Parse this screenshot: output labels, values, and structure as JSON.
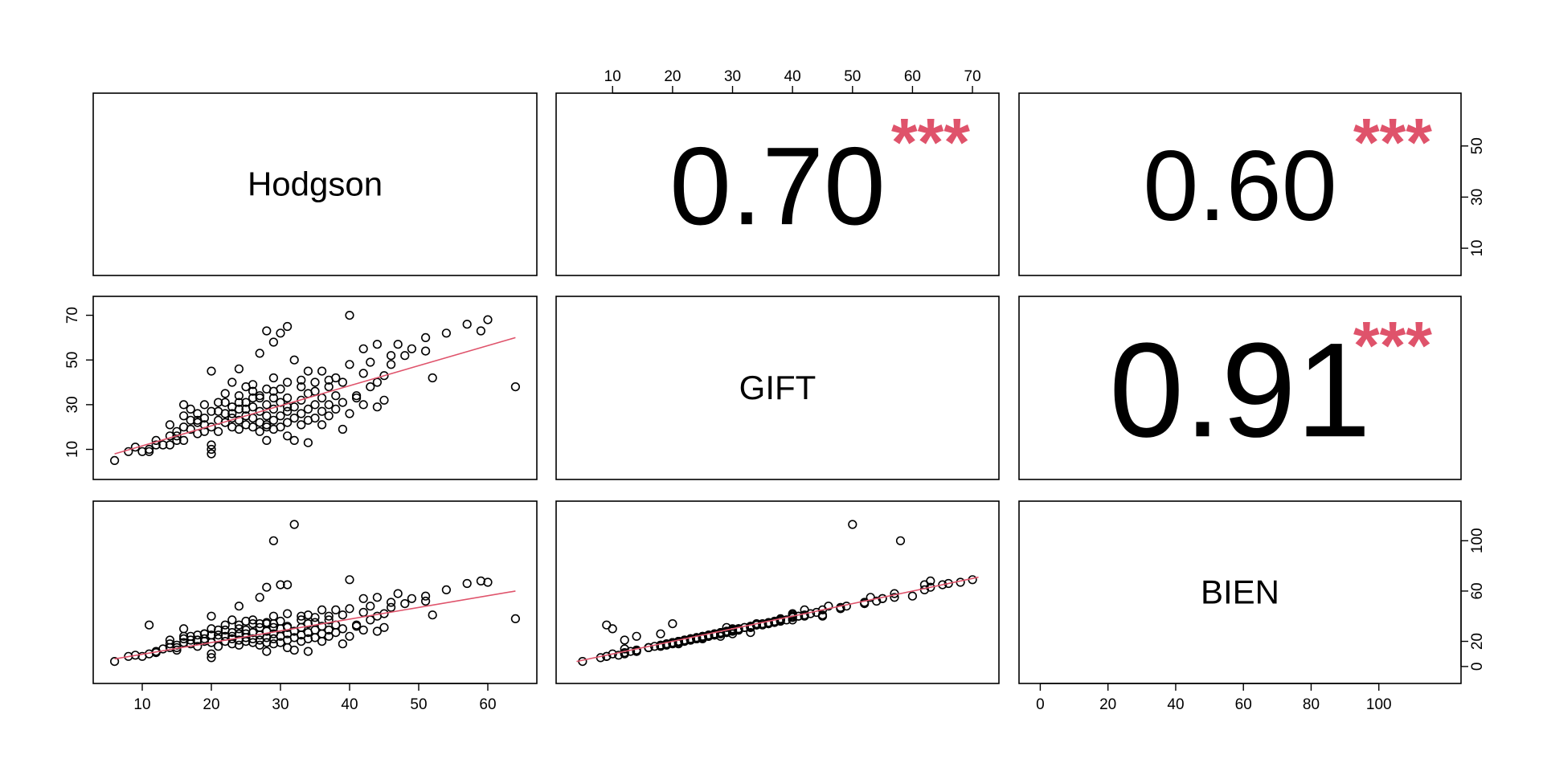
{
  "chart_data": {
    "type": "scatter",
    "variables": [
      "Hodgson",
      "GIFT",
      "BIEN"
    ],
    "ranges": {
      "Hodgson": [
        5,
        65
      ],
      "GIFT": [
        3,
        72
      ],
      "BIEN": [
        -2,
        120
      ]
    },
    "ticks": {
      "Hodgson": [
        10,
        20,
        30,
        40,
        50,
        60
      ],
      "GIFT": [
        10,
        20,
        30,
        40,
        50,
        60,
        70
      ],
      "GIFT_right": [
        10,
        30,
        50
      ],
      "GIFT_left": [
        10,
        30,
        50,
        70
      ],
      "BIEN": [
        0,
        20,
        40,
        60,
        80,
        100
      ],
      "BIEN_right": [
        0,
        20,
        60,
        100
      ]
    },
    "correlations": [
      {
        "row": 0,
        "col": 1,
        "pair": [
          "Hodgson",
          "GIFT"
        ],
        "value": "0.70",
        "stars": "***",
        "size": 0.7
      },
      {
        "row": 0,
        "col": 2,
        "pair": [
          "Hodgson",
          "BIEN"
        ],
        "value": "0.60",
        "stars": "***",
        "size": 0.6
      },
      {
        "row": 1,
        "col": 2,
        "pair": [
          "GIFT",
          "BIEN"
        ],
        "value": "0.91",
        "stars": "***",
        "size": 0.91
      }
    ],
    "fits": {
      "GIFT~Hodgson": [
        [
          6,
          8
        ],
        [
          64,
          60
        ]
      ],
      "BIEN~Hodgson": [
        [
          6,
          6
        ],
        [
          64,
          60
        ]
      ],
      "BIEN~GIFT": [
        [
          4,
          4
        ],
        [
          71,
          71
        ]
      ]
    },
    "points": [
      [
        6,
        5,
        4
      ],
      [
        8,
        9,
        8
      ],
      [
        9,
        11,
        9
      ],
      [
        10,
        9,
        8
      ],
      [
        11,
        10,
        10
      ],
      [
        12,
        14,
        12
      ],
      [
        13,
        12,
        14
      ],
      [
        14,
        16,
        15
      ],
      [
        14,
        21,
        18
      ],
      [
        15,
        18,
        17
      ],
      [
        15,
        14,
        13
      ],
      [
        16,
        20,
        19
      ],
      [
        16,
        25,
        22
      ],
      [
        17,
        19,
        18
      ],
      [
        17,
        23,
        21
      ],
      [
        17,
        28,
        24
      ],
      [
        18,
        17,
        16
      ],
      [
        18,
        22,
        21
      ],
      [
        18,
        26,
        25
      ],
      [
        19,
        21,
        20
      ],
      [
        19,
        24,
        22
      ],
      [
        19,
        30,
        26
      ],
      [
        20,
        20,
        19
      ],
      [
        20,
        27,
        25
      ],
      [
        20,
        45,
        40
      ],
      [
        20,
        12,
        10
      ],
      [
        20,
        8,
        7
      ],
      [
        21,
        18,
        16
      ],
      [
        21,
        23,
        22
      ],
      [
        21,
        31,
        29
      ],
      [
        22,
        22,
        20
      ],
      [
        22,
        26,
        24
      ],
      [
        22,
        35,
        33
      ],
      [
        23,
        20,
        18
      ],
      [
        23,
        24,
        22
      ],
      [
        23,
        29,
        27
      ],
      [
        23,
        40,
        37
      ],
      [
        24,
        19,
        17
      ],
      [
        24,
        23,
        21
      ],
      [
        24,
        28,
        26
      ],
      [
        24,
        34,
        33
      ],
      [
        24,
        46,
        48
      ],
      [
        25,
        21,
        20
      ],
      [
        25,
        25,
        23
      ],
      [
        25,
        31,
        29
      ],
      [
        25,
        38,
        36
      ],
      [
        26,
        20,
        19
      ],
      [
        26,
        24,
        22
      ],
      [
        26,
        29,
        27
      ],
      [
        26,
        36,
        34
      ],
      [
        27,
        18,
        17
      ],
      [
        27,
        22,
        21
      ],
      [
        27,
        27,
        25
      ],
      [
        27,
        33,
        31
      ],
      [
        27,
        53,
        55
      ],
      [
        28,
        14,
        12
      ],
      [
        28,
        21,
        19
      ],
      [
        28,
        25,
        23
      ],
      [
        28,
        30,
        28
      ],
      [
        28,
        37,
        35
      ],
      [
        28,
        63,
        63
      ],
      [
        29,
        19,
        18
      ],
      [
        29,
        23,
        22
      ],
      [
        29,
        28,
        26
      ],
      [
        29,
        33,
        31
      ],
      [
        29,
        42,
        40
      ],
      [
        29,
        58,
        100
      ],
      [
        30,
        20,
        19
      ],
      [
        30,
        25,
        24
      ],
      [
        30,
        31,
        30
      ],
      [
        30,
        62,
        65
      ],
      [
        31,
        16,
        15
      ],
      [
        31,
        22,
        21
      ],
      [
        31,
        27,
        26
      ],
      [
        31,
        33,
        32
      ],
      [
        31,
        40,
        42
      ],
      [
        31,
        65,
        65
      ],
      [
        32,
        14,
        13
      ],
      [
        32,
        24,
        23
      ],
      [
        32,
        29,
        28
      ],
      [
        32,
        50,
        113
      ],
      [
        33,
        21,
        20
      ],
      [
        33,
        26,
        25
      ],
      [
        33,
        32,
        31
      ],
      [
        33,
        38,
        37
      ],
      [
        34,
        13,
        12
      ],
      [
        34,
        23,
        22
      ],
      [
        34,
        28,
        27
      ],
      [
        34,
        35,
        34
      ],
      [
        35,
        24,
        23
      ],
      [
        35,
        30,
        29
      ],
      [
        35,
        40,
        39
      ],
      [
        36,
        21,
        20
      ],
      [
        36,
        27,
        26
      ],
      [
        36,
        33,
        32
      ],
      [
        37,
        25,
        24
      ],
      [
        37,
        30,
        29
      ],
      [
        37,
        38,
        37
      ],
      [
        38,
        28,
        27
      ],
      [
        38,
        34,
        33
      ],
      [
        38,
        42,
        45
      ],
      [
        39,
        19,
        18
      ],
      [
        39,
        31,
        30
      ],
      [
        39,
        40,
        41
      ],
      [
        40,
        70,
        69
      ],
      [
        40,
        26,
        24
      ],
      [
        41,
        34,
        33
      ],
      [
        41,
        33,
        32
      ],
      [
        42,
        30,
        29
      ],
      [
        42,
        55,
        54
      ],
      [
        43,
        38,
        37
      ],
      [
        43,
        49,
        48
      ],
      [
        44,
        29,
        28
      ],
      [
        44,
        40,
        40
      ],
      [
        45,
        32,
        31
      ],
      [
        45,
        43,
        42
      ],
      [
        46,
        48,
        47
      ],
      [
        47,
        57,
        58
      ],
      [
        48,
        52,
        50
      ],
      [
        49,
        55,
        54
      ],
      [
        51,
        60,
        56
      ],
      [
        51,
        54,
        52
      ],
      [
        52,
        42,
        41
      ],
      [
        59,
        63,
        68
      ],
      [
        64,
        38,
        38
      ],
      [
        34,
        45,
        41
      ],
      [
        26,
        39,
        37
      ],
      [
        22,
        31,
        29
      ],
      [
        18,
        23,
        21
      ],
      [
        15,
        16,
        15
      ],
      [
        12,
        12,
        11
      ],
      [
        33,
        41,
        40
      ],
      [
        36,
        45,
        45
      ],
      [
        40,
        48,
        46
      ],
      [
        44,
        57,
        55
      ],
      [
        30,
        37,
        36
      ],
      [
        27,
        34,
        34
      ],
      [
        24,
        31,
        30
      ],
      [
        21,
        27,
        25
      ],
      [
        19,
        18,
        26
      ],
      [
        16,
        14,
        24
      ],
      [
        14,
        12,
        21
      ],
      [
        20,
        10,
        30
      ],
      [
        28,
        20,
        34
      ],
      [
        11,
        9,
        33
      ],
      [
        16,
        30,
        30
      ],
      [
        26,
        33,
        27
      ],
      [
        29,
        36,
        34
      ],
      [
        31,
        29,
        31
      ],
      [
        25,
        28,
        26
      ],
      [
        23,
        26,
        24
      ],
      [
        35,
        36,
        35
      ],
      [
        37,
        41,
        40
      ],
      [
        42,
        44,
        43
      ],
      [
        46,
        52,
        51
      ],
      [
        54,
        62,
        61
      ],
      [
        57,
        66,
        66
      ],
      [
        60,
        68,
        67
      ]
    ]
  }
}
